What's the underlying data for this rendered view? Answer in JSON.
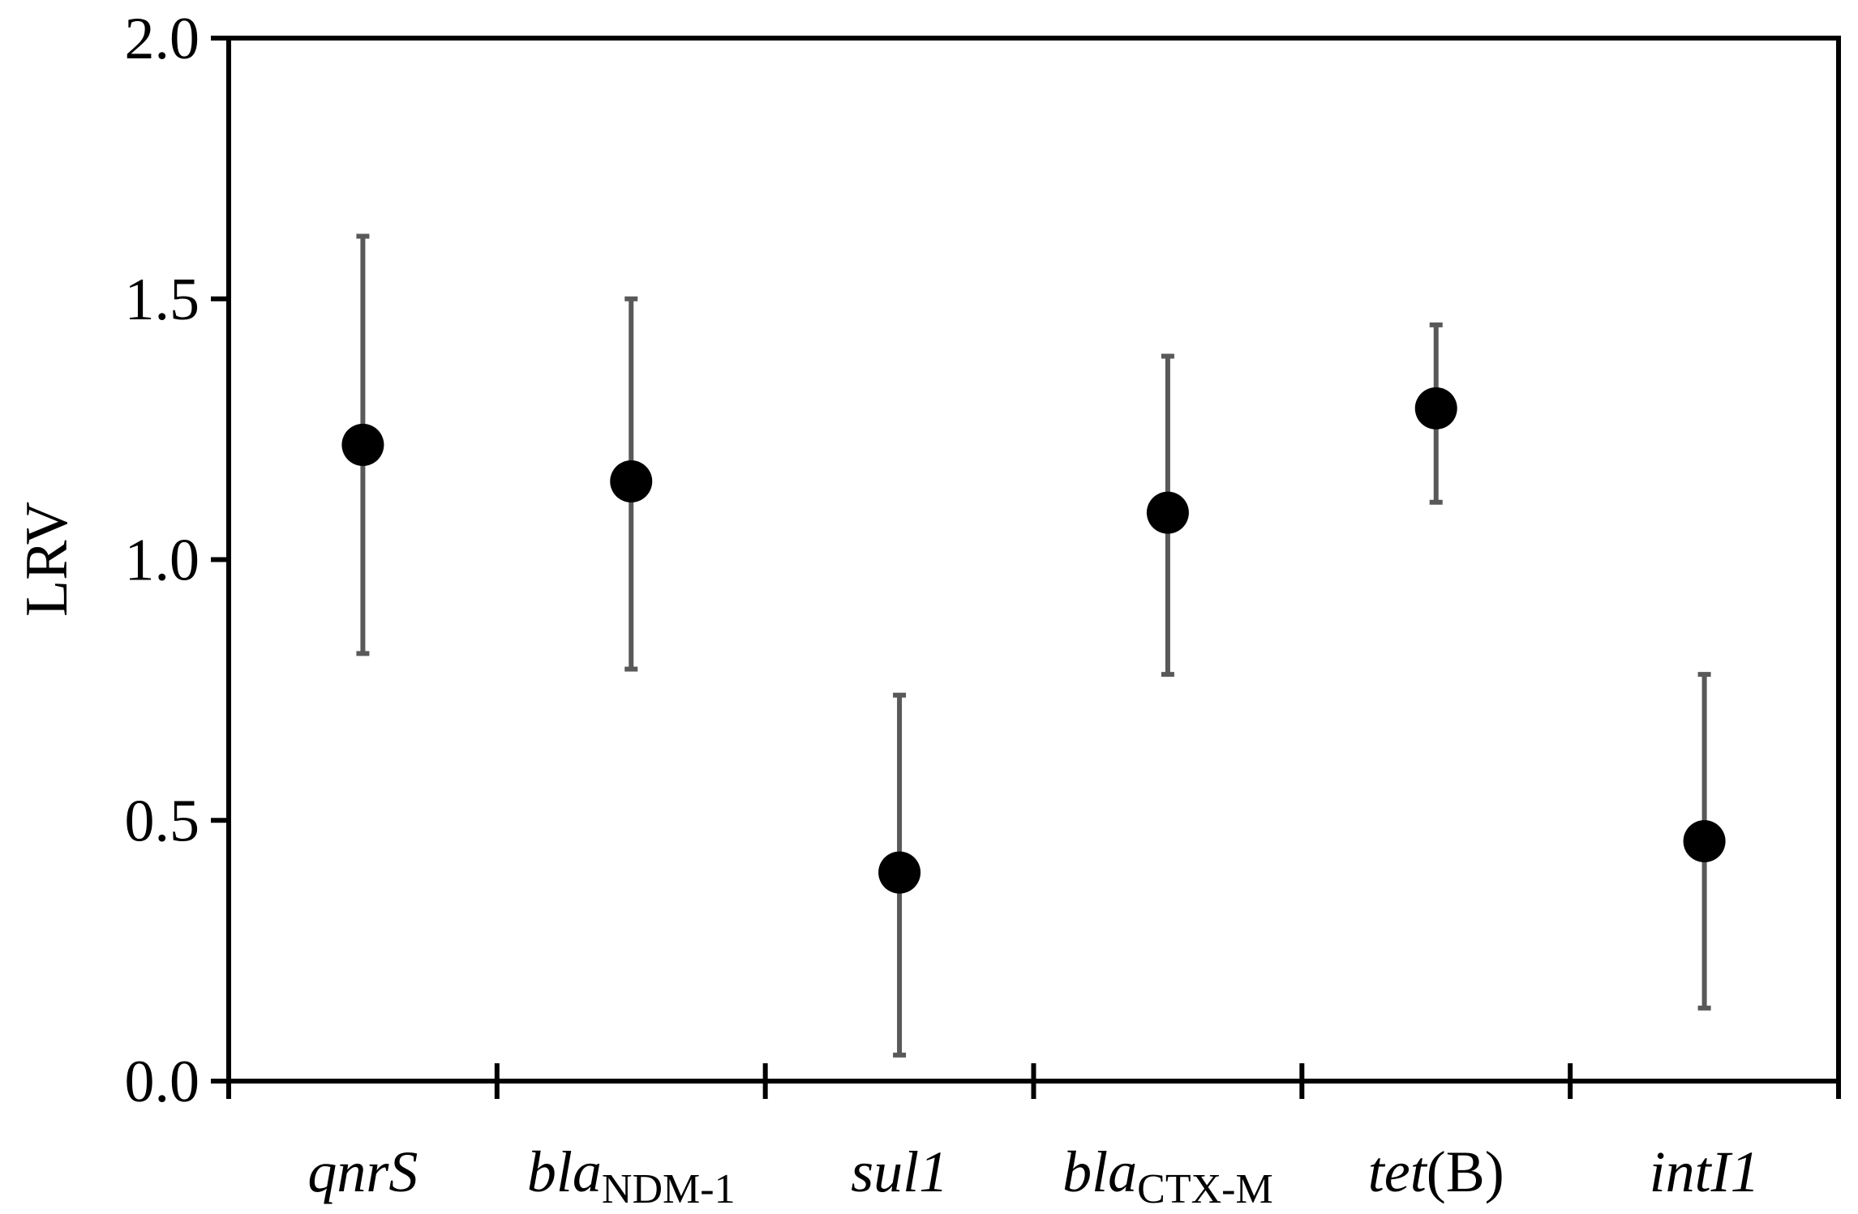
{
  "chart_data": {
    "type": "scatter",
    "title": "",
    "xlabel": "",
    "ylabel": "LRV",
    "ylim": [
      0,
      2
    ],
    "yticks": [
      "0.0",
      "0.5",
      "1.0",
      "1.5",
      "2.0"
    ],
    "grid": false,
    "legend": "none",
    "colors": {
      "point": "#000000",
      "errorbar": "#595959",
      "axis": "#000000"
    },
    "categories": [
      {
        "italic": "qnrS",
        "sub": "",
        "rest": ""
      },
      {
        "italic": "bla",
        "sub": "NDM-1",
        "rest": ""
      },
      {
        "italic": "sul1",
        "sub": "",
        "rest": ""
      },
      {
        "italic": "bla",
        "sub": "CTX-M",
        "rest": ""
      },
      {
        "italic": "tet",
        "sub": "",
        "rest": "(B)"
      },
      {
        "italic": "intI1",
        "sub": "",
        "rest": ""
      }
    ],
    "values": [
      1.22,
      1.15,
      0.4,
      1.09,
      1.29,
      0.46
    ],
    "error_low": [
      0.82,
      0.79,
      0.05,
      0.78,
      1.11,
      0.14
    ],
    "error_high": [
      1.62,
      1.5,
      0.74,
      1.39,
      1.45,
      0.78
    ]
  }
}
